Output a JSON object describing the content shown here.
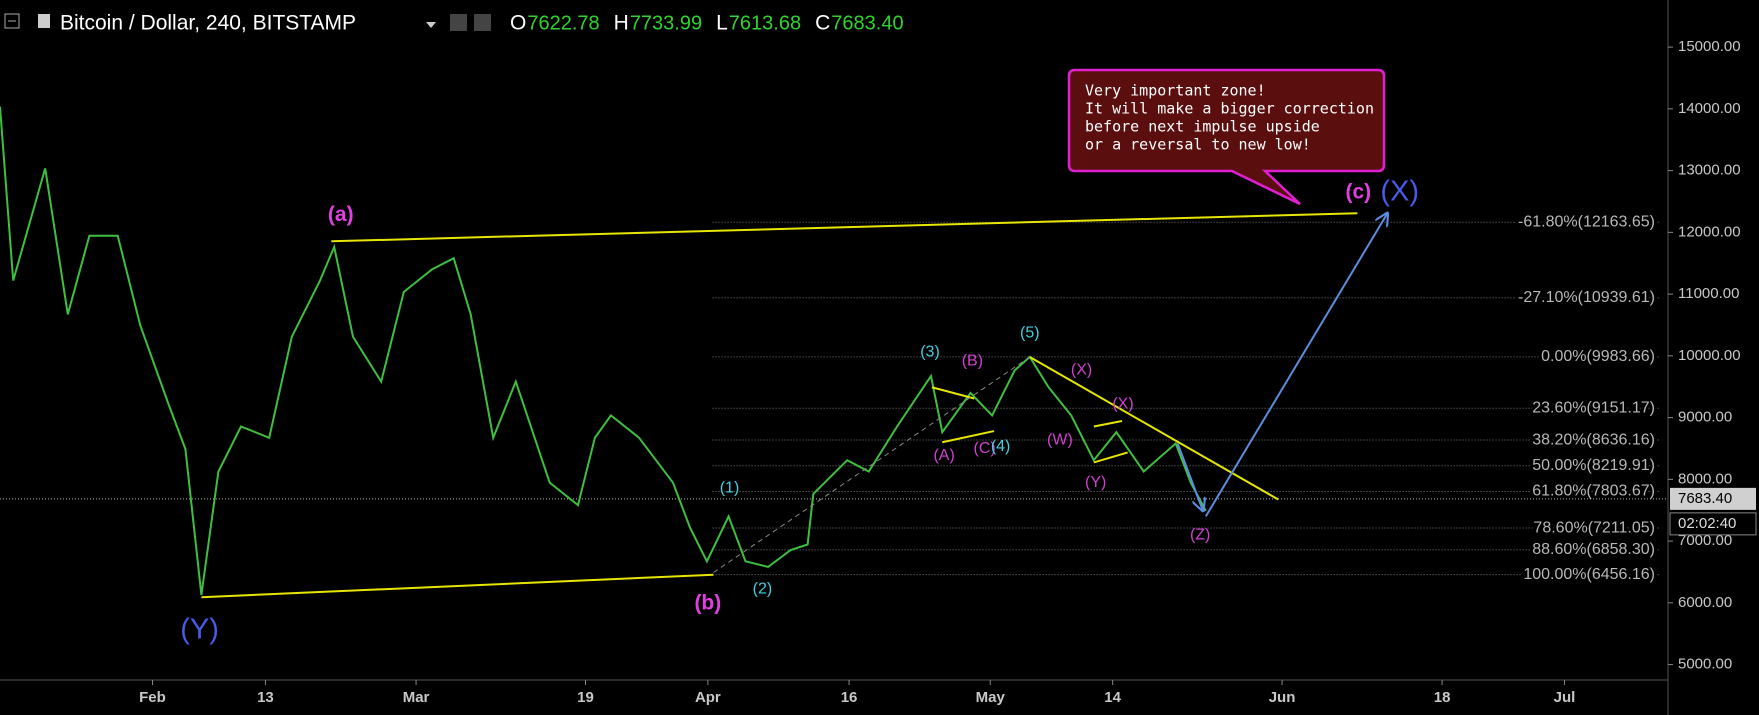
{
  "chart_data": {
    "type": "line",
    "title": "Bitcoin / Dollar, 240, BITSTAMP",
    "ohlc": [
      {
        "name": "O",
        "value": 7622.78
      },
      {
        "name": "H",
        "value": 7733.99
      },
      {
        "name": "L",
        "value": 7613.68
      },
      {
        "name": "C",
        "value": 7683.4,
        "label": "7683.40"
      }
    ],
    "color": "#3fbf3f",
    "x": [
      15.8,
      17.2,
      20.6,
      23,
      25.3,
      28.3,
      30.7,
      33.7,
      35.5,
      37.2,
      39,
      41.4,
      44.4,
      46.8,
      49.8,
      51.3,
      53.3,
      56.3,
      58.7,
      61.7,
      64,
      65.8,
      68.2,
      70.6,
      74.2,
      77.2,
      79,
      80.7,
      83.7,
      87.3,
      89.1,
      90.9,
      93.2,
      95,
      97.4,
      99.8,
      101.6,
      102.2,
      105.8,
      108.1,
      111.1,
      114.7,
      115.9,
      118.9,
      121.2,
      123.6,
      125.2,
      127.2,
      129.6,
      132,
      134.4,
      137.3,
      140.7,
      142.3,
      143.9
    ],
    "values": [
      14036,
      11218,
      13036,
      10673,
      11945,
      11945,
      10491,
      9218,
      8491,
      6127,
      8127,
      8855,
      8673,
      10309,
      11218,
      11764,
      10309,
      9582,
      11036,
      11400,
      11582,
      10673,
      8673,
      9582,
      7945,
      7582,
      8673,
      9036,
      8673,
      7945,
      7218,
      6673,
      7400,
      6673,
      6582,
      6855,
      6945,
      7764,
      8309,
      8127,
      8855,
      9673,
      8764,
      9400,
      9036,
      9764,
      9982,
      9491,
      9036,
      8309,
      8764,
      8127,
      8582,
      7945,
      7491
    ],
    "xlim": [
      15.8,
      193
    ],
    "ylim": [
      4750,
      15763
    ],
    "xticks": [
      {
        "value": 32,
        "label": "Feb"
      },
      {
        "value": 44,
        "label": "13"
      },
      {
        "value": 60,
        "label": "Mar"
      },
      {
        "value": 78,
        "label": "19"
      },
      {
        "value": 91,
        "label": "Apr"
      },
      {
        "value": 106,
        "label": "16"
      },
      {
        "value": 121,
        "label": "May"
      },
      {
        "value": 134,
        "label": "14"
      },
      {
        "value": 152,
        "label": "Jun"
      },
      {
        "value": 169,
        "label": "18"
      },
      {
        "value": 182,
        "label": "Jul"
      }
    ],
    "yticks": [
      {
        "value": 5000,
        "label": "5000.00"
      },
      {
        "value": 6000,
        "label": "6000.00"
      },
      {
        "value": 7000,
        "label": "7000.00"
      },
      {
        "value": 8000,
        "label": "8000.00"
      },
      {
        "value": 9000,
        "label": "9000.00"
      },
      {
        "value": 10000,
        "label": "10000.00"
      },
      {
        "value": 11000,
        "label": "11000.00"
      },
      {
        "value": 12000,
        "label": "12000.00"
      },
      {
        "value": 13000,
        "label": "13000.00"
      },
      {
        "value": 14000,
        "label": "14000.00"
      },
      {
        "value": 15000,
        "label": "15000.00"
      }
    ],
    "last_price": {
      "value": 7683.4,
      "label": "7683.40"
    },
    "countdown": "02:02:40",
    "fib_start": 91.5,
    "fib_levels": [
      {
        "value": 12163.65,
        "label": "-61.80%(12163.65)"
      },
      {
        "value": 10939.61,
        "label": "-27.10%(10939.61)"
      },
      {
        "value": 9983.66,
        "label": "0.00%(9983.66)"
      },
      {
        "value": 9151.17,
        "label": "23.60%(9151.17)"
      },
      {
        "value": 8636.16,
        "label": "38.20%(8636.16)"
      },
      {
        "value": 8219.91,
        "label": "50.00%(8219.91)"
      },
      {
        "value": 7803.67,
        "label": "61.80%(7803.67)"
      },
      {
        "value": 7211.05,
        "label": "78.60%(7211.05)"
      },
      {
        "value": 6858.3,
        "label": "88.60%(6858.30)"
      },
      {
        "value": 6456.16,
        "label": "100.00%(6456.16)"
      }
    ],
    "trend_lines": [
      {
        "x": [
          51,
          160
        ],
        "y": [
          11855,
          12310
        ],
        "color": "#e6e600"
      },
      {
        "x": [
          37.2,
          91.6
        ],
        "y": [
          6091,
          6455
        ],
        "color": "#e6e600"
      },
      {
        "x": [
          125.2,
          151.6
        ],
        "y": [
          9982,
          7673
        ],
        "color": "#e6e600"
      },
      {
        "x": [
          114.8,
          119.3
        ],
        "y": [
          9491,
          9309
        ],
        "color": "#e6e600"
      },
      {
        "x": [
          115.9,
          121.4
        ],
        "y": [
          8600,
          8782
        ],
        "color": "#e6e600"
      },
      {
        "x": [
          132,
          135
        ],
        "y": [
          8855,
          8945
        ],
        "color": "#e6e600"
      },
      {
        "x": [
          132,
          135.6
        ],
        "y": [
          8273,
          8436
        ],
        "color": "#e6e600"
      },
      {
        "x": [
          91.6,
          125.2
        ],
        "y": [
          6491,
          9982
        ],
        "color": "#888888",
        "dashed": true
      },
      {
        "x": [
          140.9,
          143.6
        ],
        "y": [
          8582,
          7491
        ],
        "color": "#5b8de0",
        "arrow": true
      },
      {
        "x": [
          143.9,
          163.2
        ],
        "y": [
          7400,
          12310
        ],
        "color": "#5b8de0",
        "arrow": true
      }
    ],
    "wave_labels": [
      {
        "text": "(a)",
        "x": 52,
        "y": 12270,
        "color": "#e040e0",
        "size": "large"
      },
      {
        "text": "(Y)",
        "x": 37,
        "y": 5545,
        "color": "#4a5ae8",
        "size": "xl"
      },
      {
        "text": "(b)",
        "x": 91,
        "y": 5982,
        "color": "#e040e0",
        "size": "large"
      },
      {
        "text": "(1)",
        "x": 93.3,
        "y": 7855,
        "color": "#40d0e0",
        "size": "small"
      },
      {
        "text": "(2)",
        "x": 96.8,
        "y": 6218,
        "color": "#40d0e0",
        "size": "small"
      },
      {
        "text": "(3)",
        "x": 114.6,
        "y": 10055,
        "color": "#40d0e0",
        "size": "small"
      },
      {
        "text": "(B)",
        "x": 119.1,
        "y": 9909,
        "color": "#d040d0",
        "size": "small"
      },
      {
        "text": "(A)",
        "x": 116.1,
        "y": 8382,
        "color": "#d040d0",
        "size": "small"
      },
      {
        "text": "(C)",
        "x": 120.4,
        "y": 8491,
        "color": "#d040d0",
        "size": "small"
      },
      {
        "text": "(4)",
        "x": 122.1,
        "y": 8527,
        "color": "#40d0e0",
        "size": "small"
      },
      {
        "text": "(5)",
        "x": 125.2,
        "y": 10364,
        "color": "#40d0e0",
        "size": "small"
      },
      {
        "text": "(X)",
        "x": 130.7,
        "y": 9764,
        "color": "#d040d0",
        "size": "small"
      },
      {
        "text": "(W)",
        "x": 128.4,
        "y": 8636,
        "color": "#d040d0",
        "size": "small"
      },
      {
        "text": "(X)",
        "x": 135.1,
        "y": 9218,
        "color": "#d040d0",
        "size": "small"
      },
      {
        "text": "(Y)",
        "x": 132.2,
        "y": 7945,
        "color": "#d040d0",
        "size": "small"
      },
      {
        "text": "(Z)",
        "x": 143.3,
        "y": 7091,
        "color": "#d040d0",
        "size": "small"
      },
      {
        "text": "(c)",
        "x": 160.1,
        "y": 12636,
        "color": "#e040e0",
        "size": "large"
      },
      {
        "text": "(X)",
        "x": 164.5,
        "y": 12636,
        "color": "#4a5ae8",
        "size": "xl"
      }
    ],
    "callout": {
      "lines": [
        "Very important zone!",
        "It will make a bigger correction",
        "before next impulse upside",
        "or a reversal to new low!"
      ]
    }
  }
}
